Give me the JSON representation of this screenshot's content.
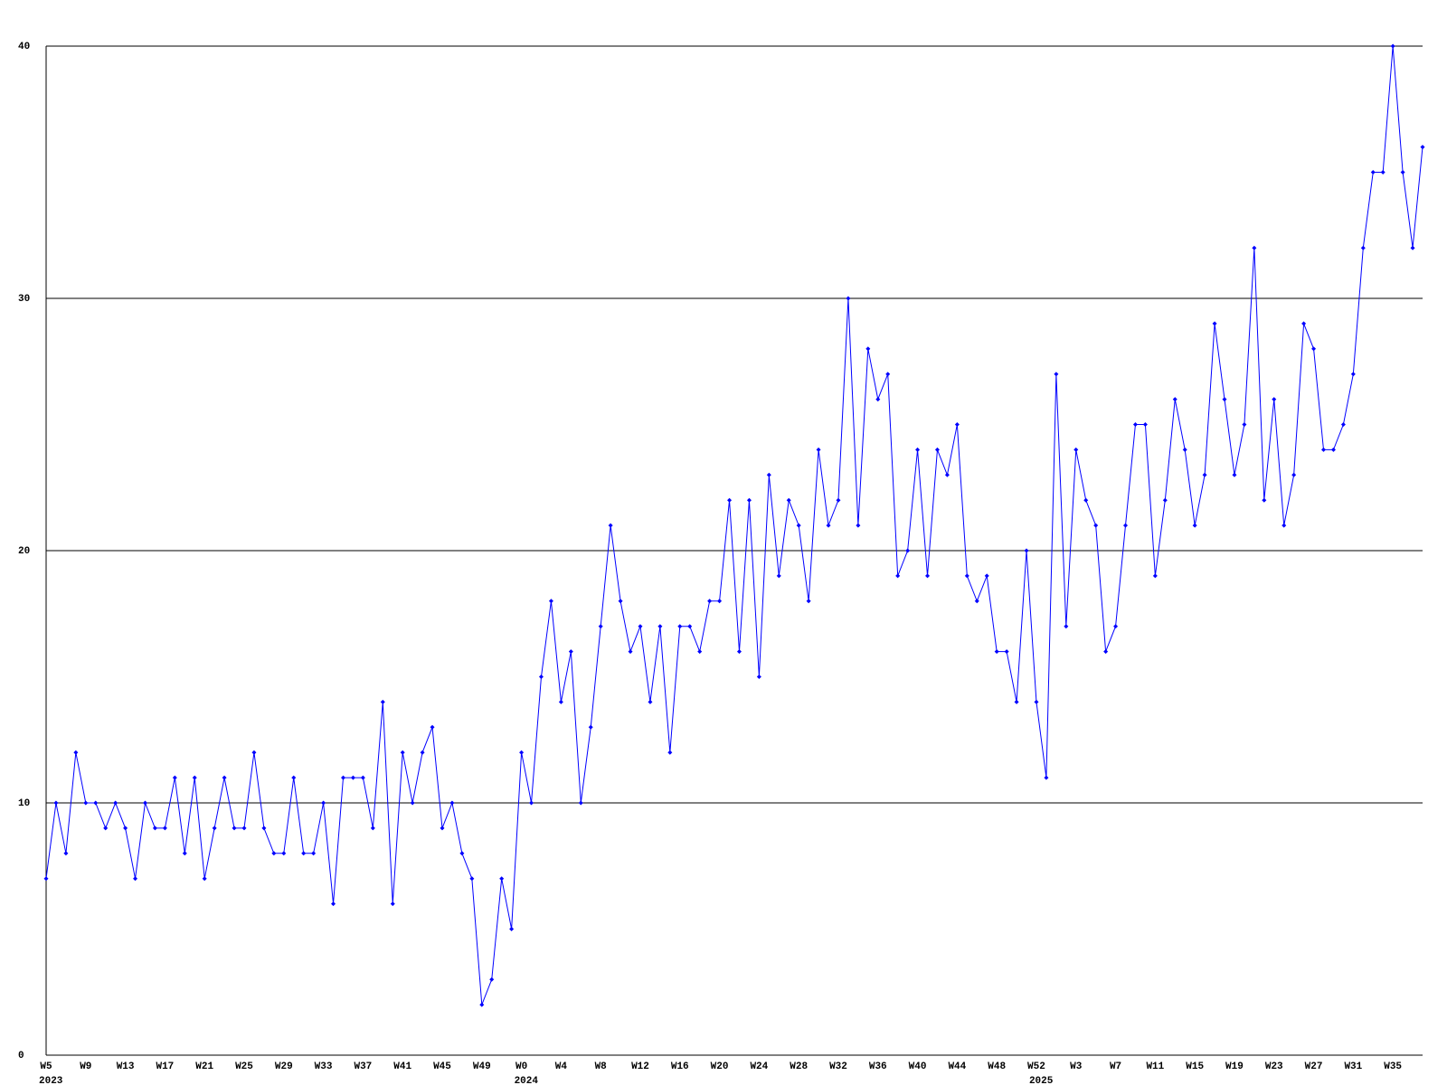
{
  "chart_data": {
    "type": "line",
    "categories": [
      "W5",
      null,
      null,
      null,
      "W9",
      null,
      null,
      null,
      "W13",
      null,
      null,
      null,
      "W17",
      null,
      null,
      null,
      "W21",
      null,
      null,
      null,
      "W25",
      null,
      null,
      null,
      "W29",
      null,
      null,
      null,
      "W33",
      null,
      null,
      null,
      "W37",
      null,
      null,
      null,
      "W41",
      null,
      null,
      null,
      "W45",
      null,
      null,
      null,
      "W49",
      null,
      null,
      null,
      "W0",
      null,
      null,
      null,
      "W4",
      null,
      null,
      null,
      "W8",
      null,
      null,
      null,
      "W12",
      null,
      null,
      null,
      "W16",
      null,
      null,
      null,
      "W20",
      null,
      null,
      null,
      "W24",
      null,
      null,
      null,
      "W28",
      null,
      null,
      null,
      "W32",
      null,
      null,
      null,
      "W36",
      null,
      null,
      null,
      "W40",
      null,
      null,
      null,
      "W44",
      null,
      null,
      null,
      "W48",
      null,
      null,
      null,
      "W52",
      null,
      null,
      null,
      "W3",
      null,
      null,
      null,
      "W7",
      null,
      null,
      null,
      "W11",
      null,
      null,
      null,
      "W15",
      null,
      null,
      null,
      "W19",
      null,
      null,
      null,
      "W23",
      null,
      null,
      null,
      "W27",
      null,
      null,
      null,
      "W31",
      null,
      null,
      null,
      "W35",
      null,
      null,
      null
    ],
    "category_years": [
      "2023",
      null,
      null,
      null,
      null,
      null,
      null,
      null,
      null,
      null,
      null,
      null,
      null,
      null,
      null,
      null,
      null,
      null,
      null,
      null,
      null,
      null,
      null,
      null,
      null,
      null,
      null,
      null,
      null,
      null,
      null,
      null,
      null,
      null,
      null,
      null,
      null,
      null,
      null,
      null,
      null,
      null,
      null,
      null,
      null,
      null,
      null,
      null,
      "2024",
      null,
      null,
      null,
      null,
      null,
      null,
      null,
      null,
      null,
      null,
      null,
      null,
      null,
      null,
      null,
      null,
      null,
      null,
      null,
      null,
      null,
      null,
      null,
      null,
      null,
      null,
      null,
      null,
      null,
      null,
      null,
      null,
      null,
      null,
      null,
      null,
      null,
      null,
      null,
      null,
      null,
      null,
      null,
      null,
      null,
      null,
      null,
      null,
      null,
      null,
      null,
      "2025",
      null,
      null,
      null,
      null,
      null,
      null,
      null,
      null,
      null,
      null,
      null,
      null,
      null,
      null,
      null,
      null,
      null,
      null,
      null,
      null,
      null,
      null,
      null,
      null,
      null,
      null,
      null,
      null,
      null,
      null,
      null,
      null,
      null,
      null,
      null,
      null,
      null,
      null,
      null
    ],
    "values": [
      7,
      10,
      8,
      12,
      10,
      10,
      9,
      10,
      9,
      7,
      10,
      9,
      9,
      11,
      8,
      11,
      7,
      9,
      11,
      9,
      9,
      12,
      9,
      8,
      8,
      11,
      8,
      8,
      10,
      6,
      11,
      11,
      11,
      9,
      14,
      6,
      12,
      10,
      12,
      13,
      9,
      10,
      8,
      7,
      2,
      3,
      7,
      5,
      12,
      10,
      15,
      18,
      14,
      16,
      10,
      13,
      17,
      21,
      18,
      16,
      17,
      14,
      17,
      12,
      17,
      17,
      16,
      18,
      18,
      22,
      16,
      22,
      15,
      23,
      19,
      22,
      21,
      18,
      24,
      21,
      22,
      30,
      21,
      28,
      26,
      27,
      19,
      20,
      24,
      19,
      24,
      23,
      25,
      19,
      18,
      19,
      16,
      16,
      14,
      20,
      14,
      11,
      27,
      17,
      24,
      22,
      21,
      16,
      17,
      21,
      25,
      25,
      19,
      22,
      26,
      24,
      21,
      23,
      29,
      26,
      23,
      25,
      32,
      22,
      26,
      21,
      23,
      29,
      28,
      24,
      24,
      25,
      27,
      32,
      35,
      35,
      40,
      35,
      32,
      36
    ],
    "color": "#0000ff",
    "ylim": [
      0,
      40
    ],
    "yticks": [
      0,
      10,
      20,
      30,
      40
    ],
    "grid": true
  }
}
